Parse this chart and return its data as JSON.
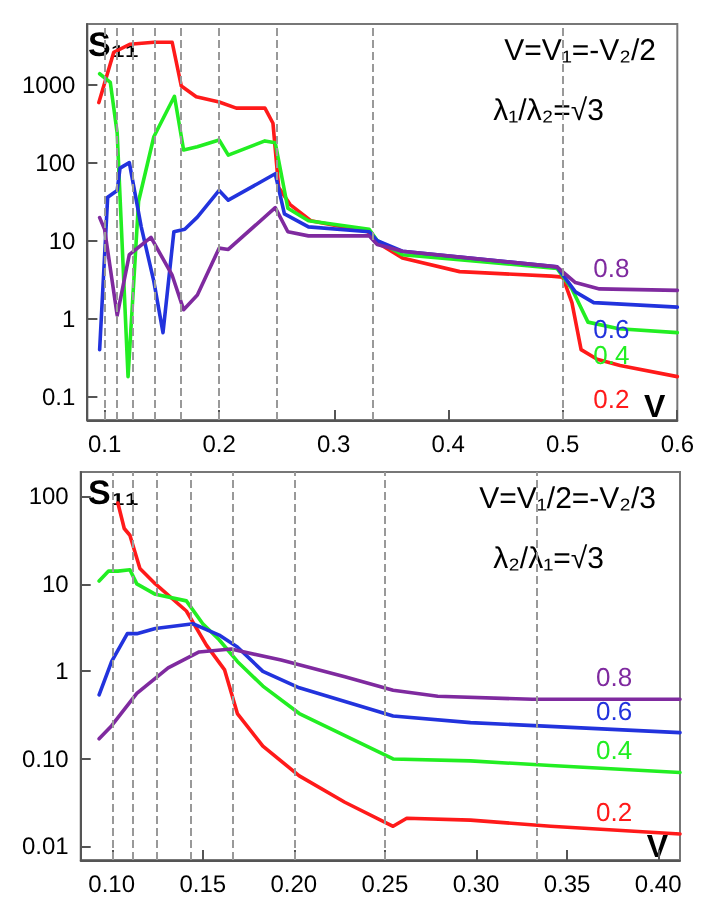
{
  "chart_data": [
    {
      "type": "line",
      "ylabel": "S₁₁",
      "xlabel": "V",
      "annotations": [
        "V=V₁=-V₂/2",
        "λ₁/λ₂=√3"
      ],
      "log": "y",
      "marker": "none",
      "line_style": "solid",
      "xlim": [
        0.085,
        0.6
      ],
      "ylim": [
        0.05,
        6000
      ],
      "xticks": [
        0.1,
        0.2,
        0.3,
        0.4,
        0.5,
        0.6
      ],
      "yticks": [
        0.1,
        1,
        10,
        100,
        1000
      ],
      "ref_lines": [
        {
          "axis": "x",
          "value": 0.1,
          "color": "#999999",
          "line_style": "dashed"
        },
        {
          "axis": "x",
          "value": 0.1111,
          "color": "#999999",
          "line_style": "dashed"
        },
        {
          "axis": "x",
          "value": 0.125,
          "color": "#999999",
          "line_style": "dashed"
        },
        {
          "axis": "x",
          "value": 0.1429,
          "color": "#999999",
          "line_style": "dashed"
        },
        {
          "axis": "x",
          "value": 0.1667,
          "color": "#999999",
          "line_style": "dashed"
        },
        {
          "axis": "x",
          "value": 0.2,
          "color": "#999999",
          "line_style": "dashed"
        },
        {
          "axis": "x",
          "value": 0.25,
          "color": "#999999",
          "line_style": "dashed"
        },
        {
          "axis": "x",
          "value": 0.3333,
          "color": "#999999",
          "line_style": "dashed"
        },
        {
          "axis": "x",
          "value": 0.5,
          "color": "#999999",
          "line_style": "dashed"
        }
      ],
      "series": [
        {
          "name": "0.2",
          "color": "#ff1a1a",
          "x": [
            0.095,
            0.108,
            0.122,
            0.143,
            0.159,
            0.167,
            0.18,
            0.2,
            0.215,
            0.24,
            0.247,
            0.252,
            0.262,
            0.28,
            0.33,
            0.336,
            0.36,
            0.41,
            0.49,
            0.5,
            0.508,
            0.516,
            0.53,
            0.55,
            0.6
          ],
          "values": [
            590,
            2600,
            3300,
            3500,
            3500,
            960,
            700,
            600,
            500,
            500,
            320,
            48,
            29,
            18,
            13,
            9.8,
            6,
            4,
            3.5,
            3.4,
            1.6,
            0.4,
            0.3,
            0.25,
            0.18
          ]
        },
        {
          "name": "0.4",
          "color": "#22ee22",
          "x": [
            0.0957,
            0.105,
            0.111,
            0.1205,
            0.1297,
            0.143,
            0.161,
            0.169,
            0.181,
            0.2,
            0.208,
            0.24,
            0.249,
            0.26,
            0.278,
            0.331,
            0.338,
            0.36,
            0.495,
            0.508,
            0.522,
            0.549,
            0.6
          ],
          "values": [
            1380,
            1070,
            240,
            0.18,
            32,
            215,
            710,
            145,
            160,
            195,
            125,
            190,
            180,
            26,
            18,
            14,
            10,
            6.6,
            4.4,
            2.4,
            0.9,
            0.74,
            0.66
          ]
        },
        {
          "name": "0.6",
          "color": "#2233dd",
          "x": [
            0.0957,
            0.1027,
            0.111,
            0.1135,
            0.1216,
            0.132,
            0.143,
            0.151,
            0.1605,
            0.17,
            0.181,
            0.2,
            0.208,
            0.249,
            0.257,
            0.278,
            0.331,
            0.338,
            0.36,
            0.495,
            0.511,
            0.527,
            0.6
          ],
          "values": [
            0.4,
            36,
            44,
            85,
            100,
            15,
            3,
            0.66,
            13,
            14,
            20,
            44,
            33,
            72,
            22,
            15,
            13,
            10,
            7.3,
            4.6,
            2.2,
            1.6,
            1.4
          ]
        },
        {
          "name": "0.8",
          "color": "#7f2a9f",
          "x": [
            0.0957,
            0.1,
            0.111,
            0.1216,
            0.1405,
            0.159,
            0.169,
            0.181,
            0.2,
            0.208,
            0.249,
            0.26,
            0.278,
            0.331,
            0.338,
            0.36,
            0.495,
            0.511,
            0.532,
            0.6
          ],
          "values": [
            19.7,
            14,
            1.1,
            6.6,
            11,
            3.6,
            1.3,
            2,
            8,
            7.7,
            26.5,
            13,
            11.5,
            11.5,
            8.9,
            7.3,
            4.6,
            2.9,
            2.4,
            2.3
          ]
        }
      ]
    },
    {
      "type": "line",
      "ylabel": "S₁₁",
      "xlabel": "V",
      "annotations": [
        "V=V₁/2=-V₂/3",
        "λ₂/λ₁=√3"
      ],
      "log": "y",
      "marker": "none",
      "line_style": "solid",
      "xlim": [
        0.083,
        0.412
      ],
      "ylim": [
        0.007,
        190
      ],
      "xticks": [
        {
          "value": 0.1,
          "label": "0.10"
        },
        0.15,
        {
          "value": 0.2,
          "label": "0.20"
        },
        0.25,
        {
          "value": 0.3,
          "label": "0.30"
        },
        0.35,
        {
          "value": 0.4,
          "label": "0.40"
        }
      ],
      "yticks": [
        0.01,
        {
          "value": 0.1,
          "label": "0.10"
        },
        1,
        10,
        100
      ],
      "ref_lines": [
        {
          "axis": "x",
          "value": 0.1,
          "color": "#999999",
          "line_style": "dashed"
        },
        {
          "axis": "x",
          "value": 0.1111,
          "color": "#999999",
          "line_style": "dashed"
        },
        {
          "axis": "x",
          "value": 0.125,
          "color": "#999999",
          "line_style": "dashed"
        },
        {
          "axis": "x",
          "value": 0.1429,
          "color": "#999999",
          "line_style": "dashed"
        },
        {
          "axis": "x",
          "value": 0.1667,
          "color": "#999999",
          "line_style": "dashed"
        },
        {
          "axis": "x",
          "value": 0.2,
          "color": "#999999",
          "line_style": "dashed"
        },
        {
          "axis": "x",
          "value": 0.25,
          "color": "#999999",
          "line_style": "dashed"
        },
        {
          "axis": "x",
          "value": 0.3333,
          "color": "#999999",
          "line_style": "dashed"
        }
      ],
      "series": [
        {
          "name": "0.2",
          "color": "#ff1a1a",
          "x": [
            0.1034,
            0.1069,
            0.11,
            0.1155,
            0.124,
            0.141,
            0.152,
            0.162,
            0.169,
            0.183,
            0.203,
            0.228,
            0.2545,
            0.262,
            0.297,
            0.341,
            0.412
          ],
          "values": [
            84,
            43,
            36,
            15,
            10,
            4.9,
            2,
            1.04,
            0.33,
            0.14,
            0.064,
            0.032,
            0.017,
            0.021,
            0.02,
            0.017,
            0.0139
          ]
        },
        {
          "name": "0.4",
          "color": "#22ee22",
          "x": [
            0.0931,
            0.0983,
            0.1034,
            0.11,
            0.1138,
            0.124,
            0.141,
            0.15,
            0.159,
            0.169,
            0.183,
            0.203,
            0.2545,
            0.297,
            0.341,
            0.412
          ],
          "values": [
            10.8,
            14,
            14,
            14.5,
            10,
            7.6,
            6.4,
            3.5,
            2.3,
            1.3,
            0.68,
            0.33,
            0.1,
            0.095,
            0.084,
            0.07
          ]
        },
        {
          "name": "0.6",
          "color": "#2233dd",
          "x": [
            0.0931,
            0.1,
            0.1086,
            0.1138,
            0.124,
            0.1448,
            0.159,
            0.169,
            0.183,
            0.203,
            0.2545,
            0.297,
            0.412
          ],
          "values": [
            0.54,
            1.3,
            2.7,
            2.7,
            3.1,
            3.5,
            2.6,
            1.9,
            1,
            0.65,
            0.31,
            0.26,
            0.2
          ]
        },
        {
          "name": "0.8",
          "color": "#7f2a9f",
          "x": [
            0.0931,
            0.1,
            0.1138,
            0.131,
            0.148,
            0.1655,
            0.193,
            0.228,
            0.2545,
            0.279,
            0.331,
            0.412
          ],
          "values": [
            0.17,
            0.24,
            0.56,
            1.1,
            1.67,
            1.8,
            1.35,
            0.87,
            0.61,
            0.52,
            0.48,
            0.48
          ]
        }
      ]
    }
  ]
}
